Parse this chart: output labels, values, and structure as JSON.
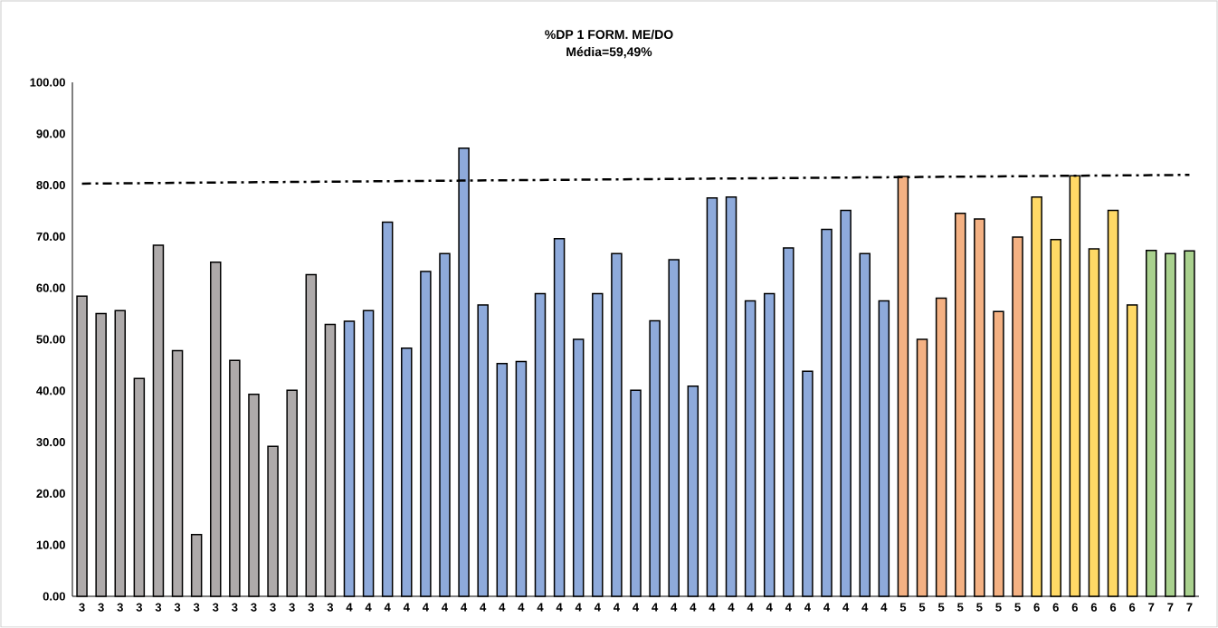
{
  "chart_data": {
    "type": "bar",
    "title": "%DP  1 FORM. ME/DO",
    "subtitle": "Média=59,49%",
    "categories": [
      "3",
      "3",
      "3",
      "3",
      "3",
      "3",
      "3",
      "3",
      "3",
      "3",
      "3",
      "3",
      "3",
      "3",
      "4",
      "4",
      "4",
      "4",
      "4",
      "4",
      "4",
      "4",
      "4",
      "4",
      "4",
      "4",
      "4",
      "4",
      "4",
      "4",
      "4",
      "4",
      "4",
      "4",
      "4",
      "4",
      "4",
      "4",
      "4",
      "4",
      "4",
      "4",
      "4",
      "5",
      "5",
      "5",
      "5",
      "5",
      "5",
      "5",
      "6",
      "6",
      "6",
      "6",
      "6",
      "6",
      "7",
      "7",
      "7"
    ],
    "series": [
      {
        "values": [
          58.4,
          55.0,
          55.6,
          42.4,
          68.3,
          47.8,
          12.0,
          65.0,
          45.9,
          39.3,
          29.2,
          40.1,
          62.6,
          52.9,
          53.5,
          55.6,
          72.8,
          48.3,
          63.2,
          66.7,
          87.2,
          56.7,
          45.3,
          45.7,
          58.9,
          69.6,
          50.0,
          58.9,
          66.7,
          40.1,
          53.6,
          65.5,
          40.9,
          77.5,
          77.7,
          57.5,
          58.9,
          67.8,
          43.8,
          71.4,
          75.1,
          66.7,
          57.5,
          81.7,
          50.0,
          58.0,
          74.5,
          73.4,
          55.4,
          69.9,
          77.7,
          69.4,
          81.8,
          67.6,
          75.1,
          56.7,
          67.3,
          66.7,
          67.2
        ],
        "colors": [
          "#aeaaaa",
          "#aeaaaa",
          "#aeaaaa",
          "#aeaaaa",
          "#aeaaaa",
          "#aeaaaa",
          "#aeaaaa",
          "#aeaaaa",
          "#aeaaaa",
          "#aeaaaa",
          "#aeaaaa",
          "#aeaaaa",
          "#aeaaaa",
          "#aeaaaa",
          "#8eaadb",
          "#8eaadb",
          "#8eaadb",
          "#8eaadb",
          "#8eaadb",
          "#8eaadb",
          "#8eaadb",
          "#8eaadb",
          "#8eaadb",
          "#8eaadb",
          "#8eaadb",
          "#8eaadb",
          "#8eaadb",
          "#8eaadb",
          "#8eaadb",
          "#8eaadb",
          "#8eaadb",
          "#8eaadb",
          "#8eaadb",
          "#8eaadb",
          "#8eaadb",
          "#8eaadb",
          "#8eaadb",
          "#8eaadb",
          "#8eaadb",
          "#8eaadb",
          "#8eaadb",
          "#8eaadb",
          "#8eaadb",
          "#f4b183",
          "#f4b183",
          "#f4b183",
          "#f4b183",
          "#f4b183",
          "#f4b183",
          "#f4b183",
          "#ffd966",
          "#ffd966",
          "#ffd966",
          "#ffd966",
          "#ffd966",
          "#ffd966",
          "#a9d18e",
          "#a9d18e",
          "#a9d18e"
        ]
      },
      {
        "type": "line",
        "color": "#000000",
        "line_style": "dashdot",
        "marker": "none",
        "values": [
          80.3,
          null,
          null,
          null,
          null,
          null,
          null,
          null,
          null,
          null,
          null,
          null,
          null,
          null,
          null,
          null,
          null,
          null,
          null,
          null,
          null,
          null,
          null,
          null,
          null,
          null,
          null,
          null,
          null,
          null,
          null,
          null,
          null,
          null,
          null,
          null,
          null,
          null,
          null,
          null,
          null,
          null,
          null,
          null,
          null,
          null,
          null,
          null,
          null,
          null,
          null,
          null,
          null,
          null,
          null,
          null,
          null,
          null,
          82.0
        ]
      }
    ],
    "ylim": [
      0,
      100
    ],
    "yticks": [
      {
        "value": 0,
        "label": "0.00"
      },
      {
        "value": 10,
        "label": "10.00"
      },
      {
        "value": 20,
        "label": "20.00"
      },
      {
        "value": 30,
        "label": "30.00"
      },
      {
        "value": 40,
        "label": "40.00"
      },
      {
        "value": 50,
        "label": "50.00"
      },
      {
        "value": 60,
        "label": "60.00"
      },
      {
        "value": 70,
        "label": "70.00"
      },
      {
        "value": 80,
        "label": "80.00"
      },
      {
        "value": 90,
        "label": "90.00"
      },
      {
        "value": 100,
        "label": "100.00"
      }
    ],
    "grid": false
  }
}
